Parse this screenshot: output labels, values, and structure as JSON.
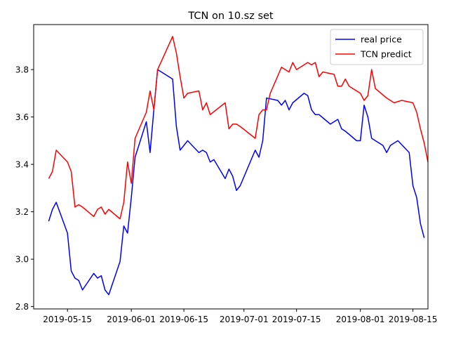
{
  "chart_data": {
    "type": "line",
    "title": "TCN on 10.sz set",
    "xlabel": "",
    "ylabel": "",
    "xlim": [
      "2019-05-06",
      "2019-08-19"
    ],
    "ylim": [
      2.79,
      3.99
    ],
    "x_ticks": [
      "2019-05-15",
      "2019-06-01",
      "2019-06-15",
      "2019-07-01",
      "2019-07-15",
      "2019-08-01",
      "2019-08-15"
    ],
    "y_ticks": [
      "2.8",
      "3.0",
      "3.2",
      "3.4",
      "3.6",
      "3.8"
    ],
    "grid": false,
    "legend_position": "top-right",
    "series": [
      {
        "name": "real price",
        "color": "#0000ff",
        "points": [
          [
            "2019-05-10",
            3.16
          ],
          [
            "2019-05-11",
            3.21
          ],
          [
            "2019-05-12",
            3.24
          ],
          [
            "2019-05-15",
            3.11
          ],
          [
            "2019-05-16",
            2.95
          ],
          [
            "2019-05-17",
            2.92
          ],
          [
            "2019-05-18",
            2.91
          ],
          [
            "2019-05-19",
            2.87
          ],
          [
            "2019-05-22",
            2.94
          ],
          [
            "2019-05-23",
            2.92
          ],
          [
            "2019-05-24",
            2.93
          ],
          [
            "2019-05-25",
            2.87
          ],
          [
            "2019-05-26",
            2.85
          ],
          [
            "2019-05-29",
            2.99
          ],
          [
            "2019-05-30",
            3.14
          ],
          [
            "2019-05-31",
            3.11
          ],
          [
            "2019-06-01",
            3.26
          ],
          [
            "2019-06-02",
            3.43
          ],
          [
            "2019-06-05",
            3.58
          ],
          [
            "2019-06-06",
            3.45
          ],
          [
            "2019-06-07",
            3.63
          ],
          [
            "2019-06-08",
            3.8
          ],
          [
            "2019-06-12",
            3.76
          ],
          [
            "2019-06-13",
            3.56
          ],
          [
            "2019-06-14",
            3.46
          ],
          [
            "2019-06-16",
            3.5
          ],
          [
            "2019-06-19",
            3.45
          ],
          [
            "2019-06-20",
            3.46
          ],
          [
            "2019-06-21",
            3.45
          ],
          [
            "2019-06-22",
            3.41
          ],
          [
            "2019-06-23",
            3.42
          ],
          [
            "2019-06-26",
            3.34
          ],
          [
            "2019-06-27",
            3.38
          ],
          [
            "2019-06-28",
            3.35
          ],
          [
            "2019-06-29",
            3.29
          ],
          [
            "2019-06-30",
            3.31
          ],
          [
            "2019-07-04",
            3.46
          ],
          [
            "2019-07-05",
            3.43
          ],
          [
            "2019-07-06",
            3.5
          ],
          [
            "2019-07-07",
            3.68
          ],
          [
            "2019-07-10",
            3.67
          ],
          [
            "2019-07-11",
            3.65
          ],
          [
            "2019-07-12",
            3.67
          ],
          [
            "2019-07-13",
            3.63
          ],
          [
            "2019-07-14",
            3.66
          ],
          [
            "2019-07-17",
            3.7
          ],
          [
            "2019-07-18",
            3.69
          ],
          [
            "2019-07-19",
            3.63
          ],
          [
            "2019-07-20",
            3.61
          ],
          [
            "2019-07-21",
            3.61
          ],
          [
            "2019-07-24",
            3.57
          ],
          [
            "2019-07-25",
            3.58
          ],
          [
            "2019-07-26",
            3.59
          ],
          [
            "2019-07-27",
            3.55
          ],
          [
            "2019-07-28",
            3.54
          ],
          [
            "2019-07-31",
            3.5
          ],
          [
            "2019-08-01",
            3.5
          ],
          [
            "2019-08-02",
            3.65
          ],
          [
            "2019-08-03",
            3.6
          ],
          [
            "2019-08-04",
            3.51
          ],
          [
            "2019-08-07",
            3.48
          ],
          [
            "2019-08-08",
            3.45
          ],
          [
            "2019-08-09",
            3.48
          ],
          [
            "2019-08-11",
            3.5
          ],
          [
            "2019-08-14",
            3.45
          ],
          [
            "2019-08-15",
            3.31
          ],
          [
            "2019-08-16",
            3.26
          ],
          [
            "2019-08-17",
            3.15
          ],
          [
            "2019-08-18",
            3.09
          ]
        ]
      },
      {
        "name": "TCN predict",
        "color": "#ff0000",
        "points": [
          [
            "2019-05-10",
            3.34
          ],
          [
            "2019-05-11",
            3.37
          ],
          [
            "2019-05-12",
            3.46
          ],
          [
            "2019-05-15",
            3.41
          ],
          [
            "2019-05-16",
            3.37
          ],
          [
            "2019-05-17",
            3.22
          ],
          [
            "2019-05-18",
            3.23
          ],
          [
            "2019-05-19",
            3.22
          ],
          [
            "2019-05-22",
            3.18
          ],
          [
            "2019-05-23",
            3.21
          ],
          [
            "2019-05-24",
            3.22
          ],
          [
            "2019-05-25",
            3.19
          ],
          [
            "2019-05-26",
            3.21
          ],
          [
            "2019-05-29",
            3.17
          ],
          [
            "2019-05-30",
            3.24
          ],
          [
            "2019-05-31",
            3.41
          ],
          [
            "2019-06-01",
            3.32
          ],
          [
            "2019-06-02",
            3.51
          ],
          [
            "2019-06-05",
            3.62
          ],
          [
            "2019-06-06",
            3.71
          ],
          [
            "2019-06-07",
            3.63
          ],
          [
            "2019-06-08",
            3.8
          ],
          [
            "2019-06-12",
            3.94
          ],
          [
            "2019-06-13",
            3.87
          ],
          [
            "2019-06-14",
            3.77
          ],
          [
            "2019-06-15",
            3.68
          ],
          [
            "2019-06-16",
            3.7
          ],
          [
            "2019-06-19",
            3.71
          ],
          [
            "2019-06-20",
            3.63
          ],
          [
            "2019-06-21",
            3.66
          ],
          [
            "2019-06-22",
            3.61
          ],
          [
            "2019-06-26",
            3.66
          ],
          [
            "2019-06-27",
            3.55
          ],
          [
            "2019-06-28",
            3.57
          ],
          [
            "2019-06-29",
            3.57
          ],
          [
            "2019-06-30",
            3.56
          ],
          [
            "2019-07-04",
            3.51
          ],
          [
            "2019-07-05",
            3.61
          ],
          [
            "2019-07-06",
            3.63
          ],
          [
            "2019-07-07",
            3.63
          ],
          [
            "2019-07-08",
            3.7
          ],
          [
            "2019-07-11",
            3.81
          ],
          [
            "2019-07-13",
            3.79
          ],
          [
            "2019-07-14",
            3.83
          ],
          [
            "2019-07-15",
            3.8
          ],
          [
            "2019-07-18",
            3.83
          ],
          [
            "2019-07-19",
            3.82
          ],
          [
            "2019-07-20",
            3.83
          ],
          [
            "2019-07-21",
            3.77
          ],
          [
            "2019-07-22",
            3.79
          ],
          [
            "2019-07-25",
            3.78
          ],
          [
            "2019-07-26",
            3.73
          ],
          [
            "2019-07-27",
            3.73
          ],
          [
            "2019-07-28",
            3.76
          ],
          [
            "2019-07-29",
            3.73
          ],
          [
            "2019-08-01",
            3.7
          ],
          [
            "2019-08-02",
            3.67
          ],
          [
            "2019-08-03",
            3.69
          ],
          [
            "2019-08-04",
            3.8
          ],
          [
            "2019-08-05",
            3.72
          ],
          [
            "2019-08-08",
            3.68
          ],
          [
            "2019-08-10",
            3.66
          ],
          [
            "2019-08-12",
            3.67
          ],
          [
            "2019-08-15",
            3.66
          ],
          [
            "2019-08-16",
            3.62
          ],
          [
            "2019-08-17",
            3.55
          ],
          [
            "2019-08-18",
            3.49
          ],
          [
            "2019-08-19",
            3.41
          ]
        ]
      }
    ]
  }
}
